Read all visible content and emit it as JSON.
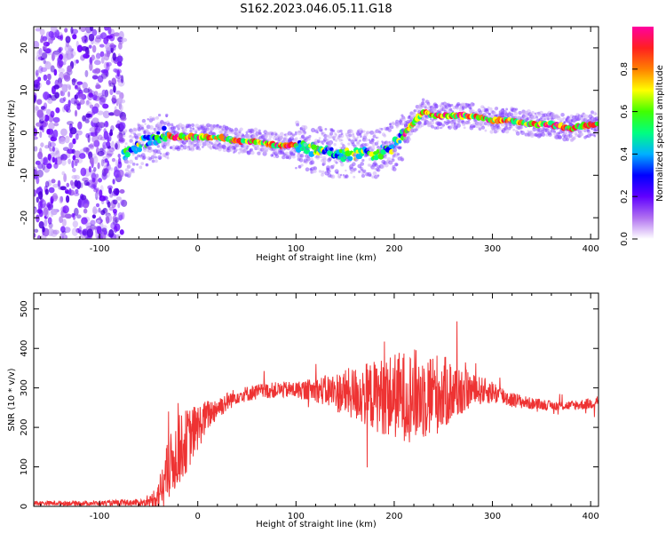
{
  "title": "S162.2023.046.05.11.G18",
  "chart_data": [
    {
      "type": "heatmap",
      "xlabel": "Height of straight line (km)",
      "ylabel": "Frequency (Hz)",
      "xlim": [
        -167,
        408
      ],
      "ylim": [
        -25,
        25
      ],
      "xticks": [
        -100,
        0,
        100,
        200,
        300,
        400
      ],
      "yticks": [
        -20,
        -10,
        0,
        10,
        20
      ],
      "colorbar": {
        "label": "Normalized spectral amplitude",
        "range": [
          0.0,
          1.0
        ],
        "ticks": [
          "0.0",
          "0.2",
          "0.4",
          "0.6",
          "0.8"
        ],
        "colors": [
          "#ffffff",
          "#b070f0",
          "#6000ff",
          "#0000ff",
          "#00b0ff",
          "#00ff80",
          "#40ff00",
          "#ffff00",
          "#ff8000",
          "#ff2020",
          "#ff00a0"
        ]
      },
      "ridge": {
        "x": [
          -75,
          -65,
          -55,
          -45,
          -35,
          -25,
          -10,
          0,
          20,
          40,
          60,
          80,
          100,
          120,
          140,
          160,
          180,
          200,
          215,
          230,
          240,
          260,
          280,
          300,
          320,
          340,
          360,
          380,
          400,
          408
        ],
        "freq": [
          -5,
          -4,
          -2,
          -2,
          0,
          -1,
          -1,
          -1,
          -1,
          -2,
          -2,
          -3,
          -3,
          -4,
          -5,
          -5,
          -5,
          -3,
          1,
          5,
          4,
          4,
          4,
          3,
          3,
          2,
          2,
          1,
          2,
          2
        ]
      },
      "noise_region_x": [
        -167,
        -75
      ]
    },
    {
      "type": "line",
      "xlabel": "Height of straight line (km)",
      "ylabel": "SNR (10 * v/v)",
      "xlim": [
        -167,
        408
      ],
      "ylim": [
        0,
        540
      ],
      "xticks": [
        -100,
        0,
        100,
        200,
        300,
        400
      ],
      "yticks": [
        0,
        100,
        200,
        300,
        400,
        500
      ],
      "color": "#ee3333",
      "envelope": {
        "x": [
          -167,
          -100,
          -50,
          -40,
          -30,
          -20,
          -10,
          0,
          10,
          20,
          30,
          40,
          60,
          80,
          100,
          120,
          140,
          160,
          180,
          200,
          220,
          240,
          260,
          280,
          300,
          320,
          340,
          360,
          380,
          400,
          408
        ],
        "base": [
          8,
          8,
          10,
          30,
          90,
          140,
          170,
          200,
          230,
          250,
          265,
          280,
          290,
          295,
          295,
          295,
          290,
          285,
          280,
          280,
          280,
          285,
          290,
          295,
          290,
          270,
          260,
          255,
          255,
          260,
          270
        ],
        "spread": [
          6,
          6,
          10,
          40,
          80,
          90,
          80,
          60,
          40,
          30,
          25,
          20,
          20,
          20,
          22,
          30,
          50,
          70,
          90,
          110,
          120,
          110,
          80,
          40,
          30,
          20,
          15,
          12,
          12,
          15,
          15
        ]
      }
    }
  ]
}
